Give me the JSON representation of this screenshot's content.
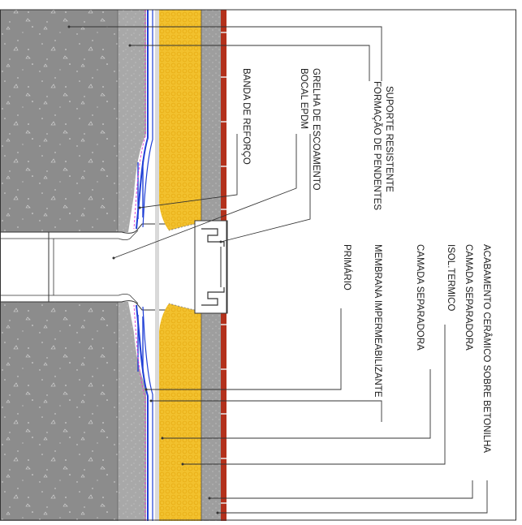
{
  "labels": {
    "suporte": "SUPORTE RESISTENTE",
    "formacao": "FORMAÇÃO DE PENDENTES",
    "banda": "BANDA DE REFORÇO",
    "grelha": "GRELHA DE ESCOAMENTO",
    "bocal": "BOCAL EPDM",
    "acabamento": "ACABAMENTO CERÂMICO SOBRE BETONILHA",
    "camada_sep_1": "CAMADA SEPARADORA",
    "isol": "ISOL.TERMICO",
    "camada_sep_2": "CAMADA SEPARADORA",
    "membrana": "MEMBRANA IMPERMEABILIZANTE",
    "primario": "PRIMÁRIO"
  },
  "colors": {
    "concrete": "#8c8c8c",
    "screed": "#a6a6a6",
    "insulation": "#f2c12e",
    "membrane": "#1f3fd6",
    "primer": "#e03bd0",
    "tile": "#b3311c",
    "leader": "#333333"
  }
}
